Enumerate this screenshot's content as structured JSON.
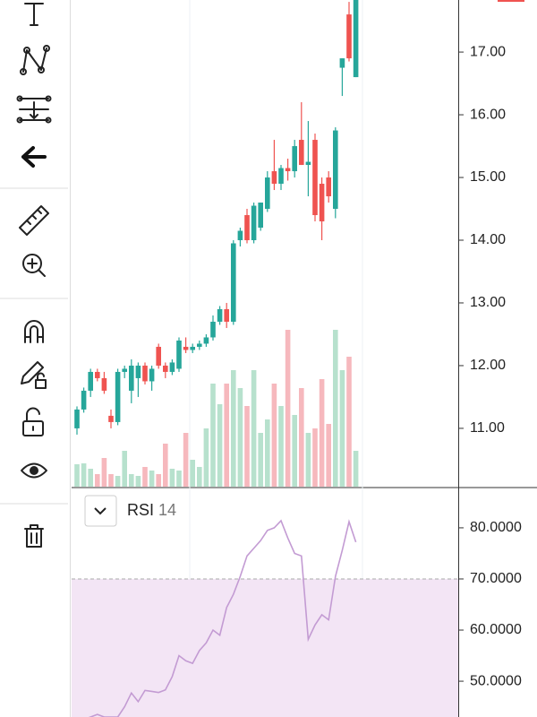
{
  "chart_data": [
    {
      "type": "candlestick",
      "open": [
        11.0,
        11.3,
        11.6,
        11.9,
        11.8,
        11.2,
        11.1,
        11.9,
        11.6,
        11.8,
        12.0,
        11.75,
        12.3,
        12.0,
        11.9,
        11.95,
        12.3,
        12.25,
        12.3,
        12.35,
        12.45,
        12.7,
        12.9,
        12.7,
        14.0,
        14.4,
        14.0,
        14.2,
        14.5,
        15.1,
        14.9,
        15.15,
        15.1,
        15.6,
        15.2,
        15.6,
        14.9,
        15.0,
        14.5,
        16.75,
        17.6,
        16.6
      ],
      "high": [
        11.35,
        11.65,
        11.95,
        11.95,
        11.9,
        11.3,
        11.95,
        12.0,
        12.1,
        12.05,
        12.05,
        12.0,
        12.35,
        12.05,
        12.1,
        12.45,
        12.45,
        12.35,
        12.4,
        12.5,
        12.8,
        12.95,
        13.0,
        14.0,
        14.2,
        14.5,
        14.6,
        14.6,
        15.1,
        15.6,
        15.2,
        15.3,
        15.6,
        16.2,
        15.9,
        15.7,
        15.0,
        15.1,
        15.8,
        16.9,
        17.8,
        17.95
      ],
      "low": [
        10.9,
        11.25,
        11.5,
        11.75,
        11.55,
        11.0,
        11.05,
        11.8,
        11.4,
        11.5,
        11.7,
        11.6,
        11.95,
        11.8,
        11.85,
        11.9,
        12.2,
        12.2,
        12.25,
        12.3,
        12.4,
        12.65,
        12.6,
        12.65,
        13.9,
        13.95,
        13.95,
        14.15,
        14.45,
        14.8,
        14.8,
        14.95,
        15.0,
        15.2,
        14.7,
        14.3,
        14.0,
        14.6,
        14.35,
        16.3,
        16.85,
        16.6
      ],
      "close": [
        11.3,
        11.6,
        11.9,
        11.8,
        11.6,
        11.1,
        11.9,
        11.95,
        12.0,
        12.0,
        11.75,
        11.95,
        12.0,
        11.9,
        12.05,
        12.4,
        12.25,
        12.3,
        12.35,
        12.45,
        12.7,
        12.9,
        12.7,
        13.95,
        14.15,
        14.0,
        14.55,
        14.6,
        15.0,
        14.9,
        15.15,
        15.1,
        15.5,
        15.2,
        15.25,
        14.4,
        14.3,
        14.7,
        15.75,
        16.9,
        16.9,
        17.9
      ],
      "volume": [
        25,
        26,
        20,
        14,
        32,
        14,
        12,
        40,
        14,
        12,
        22,
        18,
        14,
        48,
        20,
        18,
        60,
        30,
        22,
        65,
        115,
        92,
        115,
        130,
        110,
        90,
        130,
        60,
        75,
        115,
        90,
        175,
        80,
        110,
        60,
        65,
        120,
        70,
        175,
        130,
        145,
        40
      ],
      "vlim": [
        0,
        180
      ],
      "up_color": "#26a69a",
      "down_color": "#ef5350",
      "volume_up_color": "#b7e1cd",
      "volume_down_color": "#f6b8bd",
      "ylim": [
        10.07,
        17.83
      ],
      "yticks": [
        {
          "value": 11,
          "label": "11.00"
        },
        {
          "value": 12,
          "label": "12.00"
        },
        {
          "value": 13,
          "label": "13.00"
        },
        {
          "value": 14,
          "label": "14.00"
        },
        {
          "value": 15,
          "label": "15.00"
        },
        {
          "value": 16,
          "label": "16.00"
        },
        {
          "value": 17,
          "label": "17.00"
        }
      ]
    },
    {
      "type": "line",
      "title": "RSI",
      "period": 14,
      "color": "#c39bd3",
      "values": [
        42,
        42.5,
        43,
        43.5,
        43,
        43,
        43,
        45,
        47.7,
        46,
        48.2,
        48,
        47.8,
        48.3,
        50.9,
        55,
        54,
        53.5,
        56,
        57.5,
        60,
        59,
        64.4,
        67,
        70.5,
        74.5,
        76,
        77.5,
        79.5,
        80,
        81.4,
        78,
        75,
        74.5,
        58.2,
        61,
        63,
        62,
        70.5,
        75.6,
        81.2,
        77.2
      ],
      "level": 70,
      "band_color": "#f3e5f5",
      "ylim": [
        43.0,
        87.7
      ],
      "yticks": [
        {
          "value": 50,
          "label": "50.0000"
        },
        {
          "value": 60,
          "label": "60.0000"
        },
        {
          "value": 70,
          "label": "70.0000"
        },
        {
          "value": 80,
          "label": "80.0000"
        }
      ]
    }
  ]
}
